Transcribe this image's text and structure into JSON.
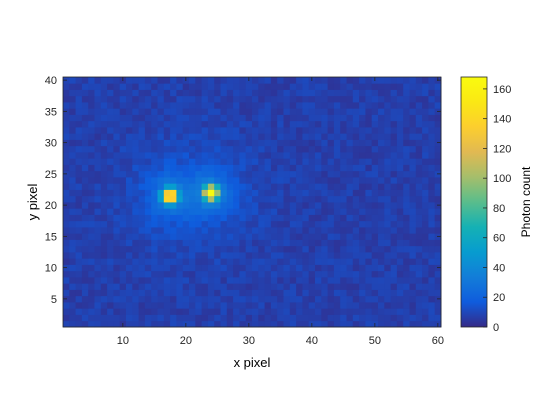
{
  "chart_data": {
    "type": "heatmap",
    "title": "",
    "xlabel": "x pixel",
    "ylabel": "y pixel",
    "xlim": [
      0.5,
      60.5
    ],
    "ylim": [
      0.5,
      40.5
    ],
    "xticks": [
      10,
      20,
      30,
      40,
      50,
      60
    ],
    "yticks": [
      5,
      10,
      15,
      20,
      25,
      30,
      35,
      40
    ],
    "grid_size": {
      "cols": 60,
      "rows": 40
    },
    "background_level": 7,
    "spots": [
      {
        "x": 17.5,
        "y": 21.5,
        "peak": 155
      },
      {
        "x": 24,
        "y": 22,
        "peak": 162
      }
    ],
    "colormap": "parula",
    "colorbar": {
      "label": "Photon count",
      "range": [
        0,
        168
      ],
      "ticks": [
        0,
        20,
        40,
        60,
        80,
        100,
        120,
        140,
        160
      ]
    },
    "grid": false
  }
}
